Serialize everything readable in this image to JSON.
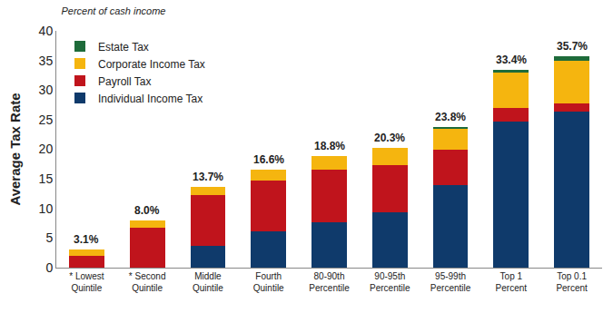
{
  "chart_data": {
    "type": "bar",
    "stacked": true,
    "title": "Percent of cash income",
    "y_label": "Average Tax Rate",
    "categories": [
      "* Lowest Quintile",
      "* Second Quintile",
      "Middle Quintile",
      "Fourth Quintile",
      "80-90th Percentile",
      "90-95th Percentile",
      "95-99th Percentile",
      "Top 1 Percent",
      "Top 0.1 Percent"
    ],
    "series": [
      {
        "name": "Individual Income Tax",
        "color": "#0f3a6b",
        "values": [
          0,
          0,
          3.7,
          6.2,
          7.6,
          9.3,
          14.0,
          24.6,
          26.4
        ]
      },
      {
        "name": "Payroll Tax",
        "color": "#c0141c",
        "values": [
          2.0,
          6.7,
          8.5,
          8.5,
          9.0,
          8.0,
          6.0,
          2.3,
          1.4
        ]
      },
      {
        "name": "Corporate Income Tax",
        "color": "#f5b50f",
        "values": [
          1.1,
          1.3,
          1.5,
          1.9,
          2.2,
          3.0,
          3.5,
          6.1,
          7.2
        ]
      },
      {
        "name": "Estate Tax",
        "color": "#1e6b3a",
        "values": [
          0,
          0,
          0,
          0,
          0,
          0,
          0.3,
          0.4,
          0.7
        ]
      }
    ],
    "totals": [
      3.1,
      8.0,
      13.7,
      16.6,
      18.8,
      20.3,
      23.8,
      33.4,
      35.7
    ],
    "total_labels": [
      "3.1%",
      "8.0%",
      "13.7%",
      "16.6%",
      "18.8%",
      "20.3%",
      "23.8%",
      "33.4%",
      "35.7%"
    ],
    "ylim": [
      0,
      40
    ],
    "yticks": [
      0,
      5,
      10,
      15,
      20,
      25,
      30,
      35,
      40
    ],
    "grid": false,
    "legend": "upper left",
    "data_labels": false
  }
}
